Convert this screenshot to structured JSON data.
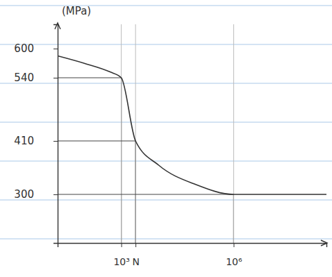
{
  "chart_data": {
    "type": "line",
    "y_label": "(MPa)",
    "x": [
      20,
      100,
      500,
      1000,
      2400,
      10000,
      100000,
      1000000,
      300000000
    ],
    "values": [
      585,
      570,
      552,
      540,
      410,
      360,
      320,
      300,
      300
    ],
    "color": "#333333",
    "log": "x",
    "grid": false,
    "xlim": [
      20,
      300000000
    ],
    "xticks": [
      {
        "value": 1000,
        "label": "10³"
      },
      {
        "value": 2400,
        "label": "N"
      },
      {
        "value": 1000000,
        "label": "10⁶"
      }
    ],
    "ylim": [
      200,
      650
    ],
    "yticks": [
      600,
      540,
      410,
      300
    ]
  }
}
